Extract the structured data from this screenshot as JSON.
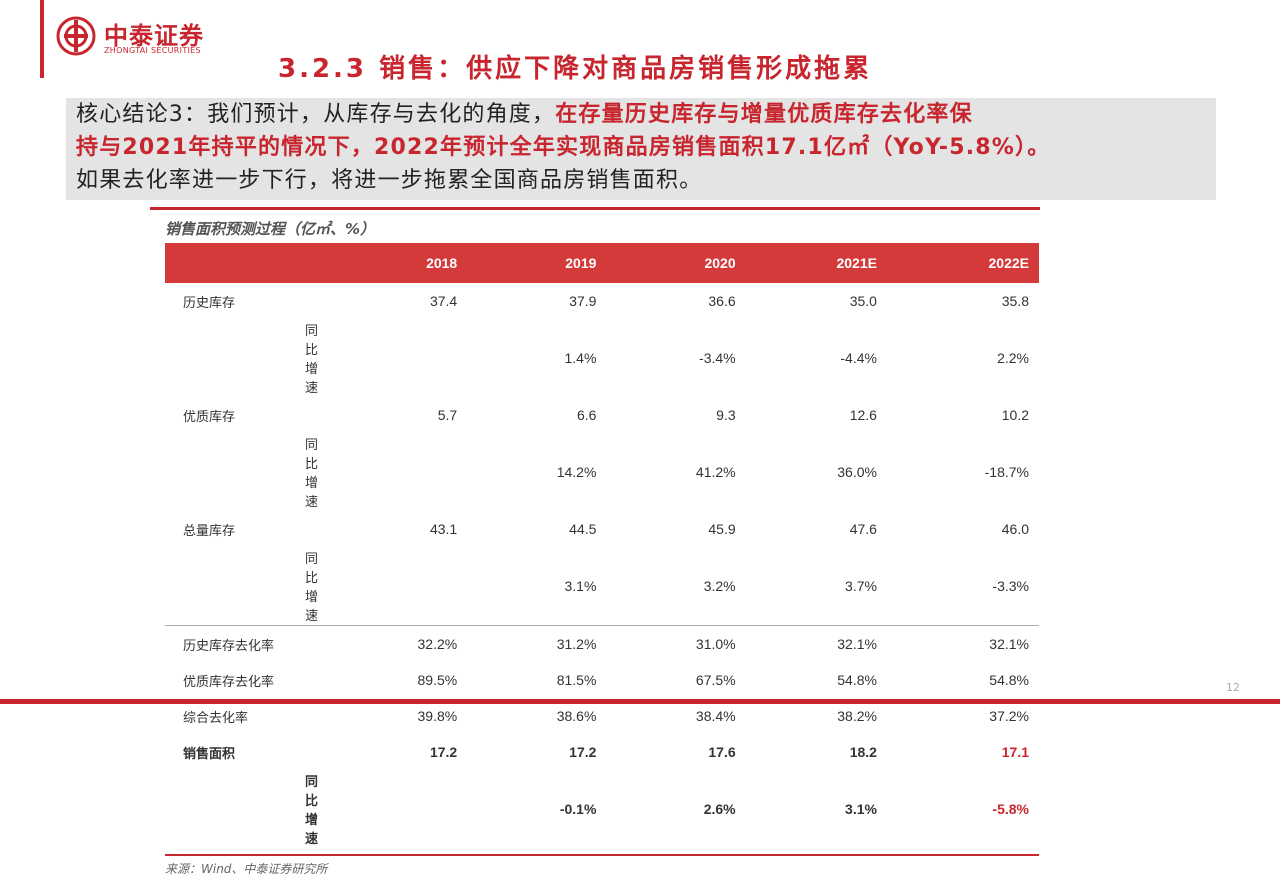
{
  "brand": {
    "name_cn": "中泰证券",
    "name_en": "ZHONGTAI SECURITIES",
    "color": "#c8262e"
  },
  "title": "3.2.3 销售：供应下降对商品房销售形成拖累",
  "conclusion": {
    "line1_normal": "核心结论3：我们预计，从库存与去化的角度，",
    "line1_red": "在存量历史库存与增量优质库存去化率保",
    "line2_red": "持与2021年持平的情况下，2022年预计全年实现商品房销售面积17.1亿㎡（YoY-5.8%）。",
    "line3": "如果去化率进一步下行，将进一步拖累全国商品房销售面积。"
  },
  "table": {
    "caption": "销售面积预测过程（亿㎡、%）",
    "headers": [
      "",
      "2018",
      "2019",
      "2020",
      "2021E",
      "2022E"
    ],
    "rows": [
      {
        "label": "历史库存",
        "sub": false,
        "cells": [
          "37.4",
          "37.9",
          "36.6",
          "35.0",
          "35.8"
        ]
      },
      {
        "label": "同比增速",
        "sub": true,
        "cells": [
          "",
          "1.4%",
          "-3.4%",
          "-4.4%",
          "2.2%"
        ]
      },
      {
        "label": "优质库存",
        "sub": false,
        "cells": [
          "5.7",
          "6.6",
          "9.3",
          "12.6",
          "10.2"
        ]
      },
      {
        "label": "同比增速",
        "sub": true,
        "cells": [
          "",
          "14.2%",
          "41.2%",
          "36.0%",
          "-18.7%"
        ]
      },
      {
        "label": "总量库存",
        "sub": false,
        "cells": [
          "43.1",
          "44.5",
          "45.9",
          "47.6",
          "46.0"
        ]
      },
      {
        "label": "同比增速",
        "sub": true,
        "cells": [
          "",
          "3.1%",
          "3.2%",
          "3.7%",
          "-3.3%"
        ]
      },
      {
        "label": "历史库存去化率",
        "sub": false,
        "cells": [
          "32.2%",
          "31.2%",
          "31.0%",
          "32.1%",
          "32.1%"
        ]
      },
      {
        "label": "优质库存去化率",
        "sub": false,
        "cells": [
          "89.5%",
          "81.5%",
          "67.5%",
          "54.8%",
          "54.8%"
        ]
      },
      {
        "label": "综合去化率",
        "sub": false,
        "cells": [
          "39.8%",
          "38.6%",
          "38.4%",
          "38.2%",
          "37.2%"
        ]
      },
      {
        "label": "销售面积",
        "sub": false,
        "cells": [
          "17.2",
          "17.2",
          "17.6",
          "18.2",
          "17.1"
        ]
      },
      {
        "label": "同比增速",
        "sub": true,
        "cells": [
          "",
          "-0.1%",
          "2.6%",
          "3.1%",
          "-5.8%"
        ]
      }
    ],
    "source": "来源：Wind、中泰证券研究所"
  },
  "page_number": "12"
}
